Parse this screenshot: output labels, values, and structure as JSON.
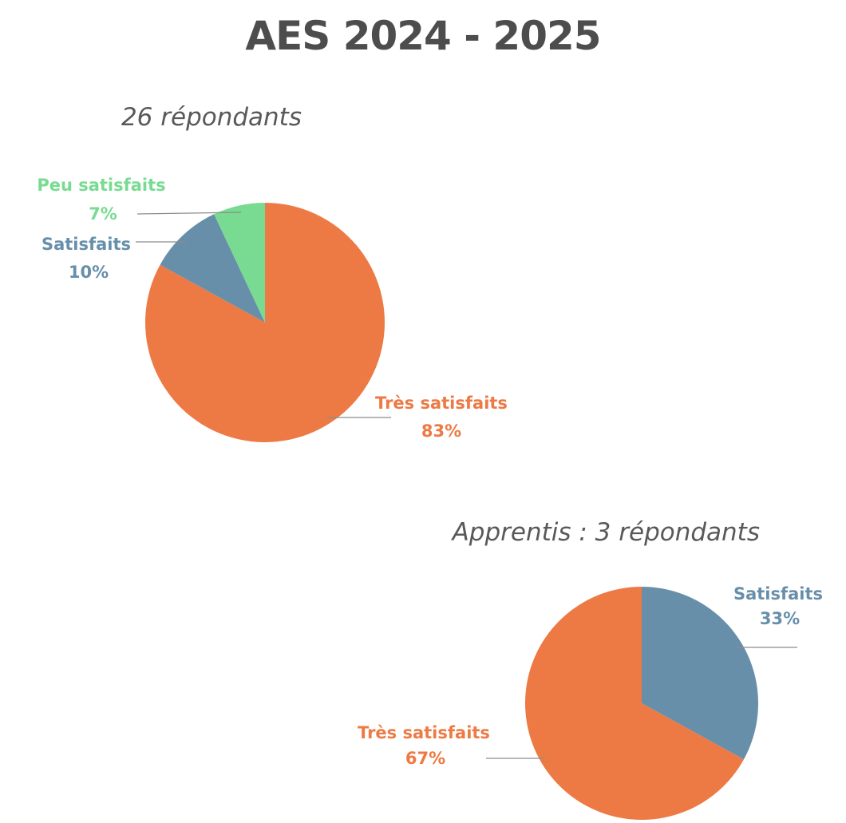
{
  "page": {
    "title": "AES 2024 - 2025"
  },
  "chart_data": [
    {
      "type": "pie",
      "title": "26 répondants",
      "start": "12 o'clock, clockwise",
      "slices": [
        {
          "name": "Très satisfaits",
          "value": 83,
          "label": "83%",
          "color": "#ed7a44"
        },
        {
          "name": "Satisfaits",
          "value": 10,
          "label": "10%",
          "color": "#678faa"
        },
        {
          "name": "Peu satisfaits",
          "value": 7,
          "label": "7%",
          "color": "#78db91"
        }
      ]
    },
    {
      "type": "pie",
      "title": "Apprentis : 3 répondants",
      "start": "12 o'clock, clockwise",
      "slices": [
        {
          "name": "Satisfaits",
          "value": 33,
          "label": "33%",
          "color": "#678faa"
        },
        {
          "name": "Très satisfaits",
          "value": 67,
          "label": "67%",
          "color": "#ed7a44"
        }
      ]
    }
  ]
}
